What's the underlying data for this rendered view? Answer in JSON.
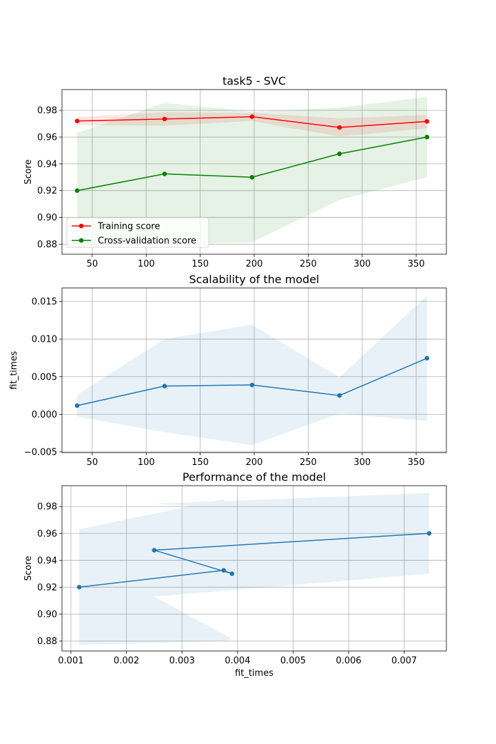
{
  "chart_data": [
    {
      "type": "line",
      "title": "task5 - SVC",
      "xlabel": "",
      "ylabel": "Score",
      "xlim": [
        22,
        378
      ],
      "ylim": [
        0.8725,
        0.9955
      ],
      "xticks": [
        50,
        100,
        150,
        200,
        250,
        300,
        350
      ],
      "xtick_labels": [
        "50",
        "100",
        "150",
        "200",
        "250",
        "300",
        "350"
      ],
      "yticks": [
        0.88,
        0.9,
        0.92,
        0.94,
        0.96,
        0.98
      ],
      "ytick_labels": [
        "0.88",
        "0.90",
        "0.92",
        "0.94",
        "0.96",
        "0.98"
      ],
      "grid": true,
      "legend": "lower-left",
      "x": [
        36,
        117,
        198,
        279,
        360
      ],
      "series": [
        {
          "name": "Training score",
          "color": "#ff0000",
          "values": [
            0.972,
            0.9735,
            0.9752,
            0.9672,
            0.9717
          ],
          "band_low": [
            0.969,
            0.9685,
            0.972,
            0.9605,
            0.9665
          ],
          "band_high": [
            0.975,
            0.9785,
            0.978,
            0.974,
            0.9765
          ]
        },
        {
          "name": "Cross-validation score",
          "color": "#008000",
          "values": [
            0.92,
            0.9325,
            0.93,
            0.9475,
            0.96
          ],
          "band_low": [
            0.877,
            0.88,
            0.8815,
            0.913,
            0.93
          ],
          "band_high": [
            0.963,
            0.9855,
            0.979,
            0.982,
            0.99
          ]
        }
      ]
    },
    {
      "type": "line",
      "title": "Scalability of the model",
      "xlabel": "",
      "ylabel": "fit_times",
      "xlim": [
        22,
        378
      ],
      "ylim": [
        -0.0051,
        0.0168
      ],
      "xticks": [
        50,
        100,
        150,
        200,
        250,
        300,
        350
      ],
      "xtick_labels": [
        "50",
        "100",
        "150",
        "200",
        "250",
        "300",
        "350"
      ],
      "yticks": [
        -0.005,
        0.0,
        0.005,
        0.01,
        0.015
      ],
      "ytick_labels": [
        "−0.005",
        "0.000",
        "0.005",
        "0.010",
        "0.015"
      ],
      "grid": true,
      "x": [
        36,
        117,
        198,
        279,
        360
      ],
      "series": [
        {
          "color": "#1f77b4",
          "values": [
            0.00115,
            0.00375,
            0.0039,
            0.0025,
            0.00745
          ],
          "band_low": [
            -0.0003,
            -0.0024,
            -0.0041,
            0.0001,
            -0.0009
          ],
          "band_high": [
            0.0026,
            0.01,
            0.0119,
            0.0049,
            0.0158
          ]
        }
      ]
    },
    {
      "type": "line",
      "title": "Performance of the model",
      "xlabel": "fit_times",
      "ylabel": "Score",
      "xlim": [
        0.00084,
        0.00776
      ],
      "ylim": [
        0.8725,
        0.9955
      ],
      "xticks": [
        0.001,
        0.002,
        0.003,
        0.004,
        0.005,
        0.006,
        0.007
      ],
      "xtick_labels": [
        "0.001",
        "0.002",
        "0.003",
        "0.004",
        "0.005",
        "0.006",
        "0.007"
      ],
      "yticks": [
        0.88,
        0.9,
        0.92,
        0.94,
        0.96,
        0.98
      ],
      "ytick_labels": [
        "0.88",
        "0.90",
        "0.92",
        "0.94",
        "0.96",
        "0.98"
      ],
      "grid": true,
      "x": [
        0.00115,
        0.00375,
        0.0039,
        0.0025,
        0.00745
      ],
      "series": [
        {
          "color": "#1f77b4",
          "values": [
            0.92,
            0.9325,
            0.93,
            0.9475,
            0.96
          ],
          "band_low": [
            0.877,
            0.88,
            0.8815,
            0.913,
            0.93
          ],
          "band_high": [
            0.963,
            0.9855,
            0.979,
            0.982,
            0.99
          ]
        }
      ]
    }
  ]
}
